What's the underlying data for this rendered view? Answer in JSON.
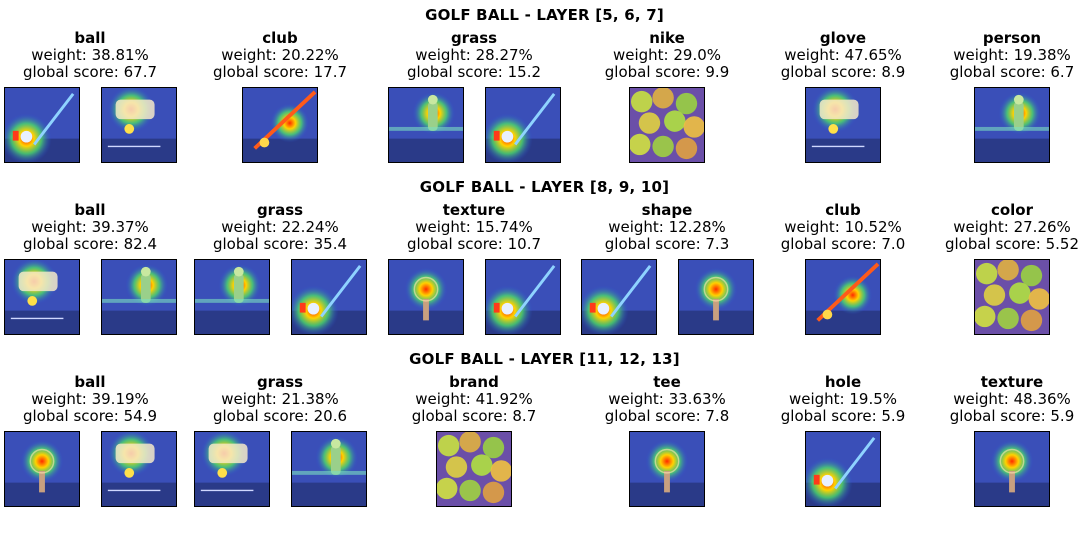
{
  "rows": [
    {
      "title": "GOLF BALL - LAYER [5, 6, 7]",
      "groups": [
        {
          "concept": "ball",
          "weight": "weight: 38.81%",
          "score": "global score: 67.7",
          "thumbs": [
            "club-ball",
            "glove"
          ]
        },
        {
          "concept": "club",
          "weight": "weight: 20.22%",
          "score": "global score: 17.7",
          "thumbs": [
            "club-diag"
          ]
        },
        {
          "concept": "grass",
          "weight": "weight: 28.27%",
          "score": "global score: 15.2",
          "thumbs": [
            "golfer",
            "club-ball"
          ]
        },
        {
          "concept": "nike",
          "weight": "weight: 29.0%",
          "score": "global score: 9.9",
          "thumbs": [
            "balls-pile"
          ]
        },
        {
          "concept": "glove",
          "weight": "weight: 47.65%",
          "score": "global score: 8.9",
          "thumbs": [
            "glove"
          ]
        },
        {
          "concept": "person",
          "weight": "weight: 19.38%",
          "score": "global score: 6.7",
          "thumbs": [
            "golfer"
          ]
        }
      ]
    },
    {
      "title": "GOLF BALL - LAYER [8, 9, 10]",
      "groups": [
        {
          "concept": "ball",
          "weight": "weight: 39.37%",
          "score": "global score: 82.4",
          "thumbs": [
            "glove",
            "golfer"
          ]
        },
        {
          "concept": "grass",
          "weight": "weight: 22.24%",
          "score": "global score: 35.4",
          "thumbs": [
            "golfer",
            "club-ball"
          ]
        },
        {
          "concept": "texture",
          "weight": "weight: 15.74%",
          "score": "global score: 10.7",
          "thumbs": [
            "ball-tee",
            "club-ball"
          ]
        },
        {
          "concept": "shape",
          "weight": "weight: 12.28%",
          "score": "global score: 7.3",
          "thumbs": [
            "club-ball",
            "ball-tee"
          ]
        },
        {
          "concept": "club",
          "weight": "weight: 10.52%",
          "score": "global score: 7.0",
          "thumbs": [
            "club-diag"
          ]
        },
        {
          "concept": "color",
          "weight": "weight: 27.26%",
          "score": "global score: 5.52",
          "thumbs": [
            "balls-pile"
          ]
        }
      ]
    },
    {
      "title": "GOLF BALL - LAYER [11, 12, 13]",
      "groups": [
        {
          "concept": "ball",
          "weight": "weight: 39.19%",
          "score": "global score: 54.9",
          "thumbs": [
            "ball-tee",
            "glove"
          ]
        },
        {
          "concept": "grass",
          "weight": "weight: 21.38%",
          "score": "global score: 20.6",
          "thumbs": [
            "glove",
            "golfer"
          ]
        },
        {
          "concept": "brand",
          "weight": "weight: 41.92%",
          "score": "global score: 8.7",
          "thumbs": [
            "balls-pile"
          ]
        },
        {
          "concept": "tee",
          "weight": "weight: 33.63%",
          "score": "global score: 7.8",
          "thumbs": [
            "ball-tee"
          ]
        },
        {
          "concept": "hole",
          "weight": "weight: 19.5%",
          "score": "global score: 5.9",
          "thumbs": [
            "club-ball"
          ]
        },
        {
          "concept": "texture",
          "weight": "weight: 48.36%",
          "score": "global score: 5.9",
          "thumbs": [
            "ball-tee"
          ]
        }
      ]
    }
  ]
}
